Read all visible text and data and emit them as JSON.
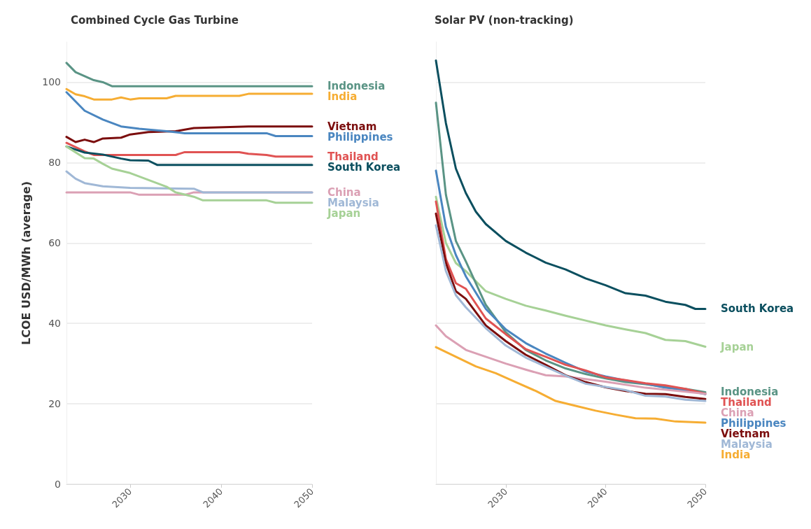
{
  "chart_data": [
    {
      "type": "line",
      "title": "Combined Cycle Gas Turbine",
      "ylabel": "LCOE USD/MWh (average)",
      "xlim": [
        2023,
        2050
      ],
      "xticks": [
        2030,
        2040,
        2050
      ],
      "ylim": [
        0,
        110
      ],
      "yticks": [
        0,
        20,
        40,
        60,
        80,
        100
      ],
      "grid": "y",
      "legend": false,
      "marker": "none",
      "line_style": "solid",
      "series": [
        {
          "name": "Indonesia",
          "color": "#5a9485",
          "x": [
            2023,
            2024,
            2025,
            2026,
            2027,
            2028,
            2050
          ],
          "values": [
            104.8,
            102.5,
            101.5,
            100.5,
            100,
            99,
            99
          ]
        },
        {
          "name": "India",
          "color": "#f6ad33",
          "x": [
            2023,
            2024,
            2025,
            2026,
            2028,
            2029,
            2030,
            2031,
            2034,
            2035,
            2042,
            2043,
            2050
          ],
          "values": [
            98.3,
            97,
            96.5,
            95.7,
            95.7,
            96.2,
            95.7,
            96,
            96,
            96.6,
            96.6,
            97.1,
            97.1
          ]
        },
        {
          "name": "Vietnam",
          "color": "#7b0d0d",
          "x": [
            2023,
            2024,
            2025,
            2026,
            2027,
            2029,
            2030,
            2032,
            2035,
            2037,
            2043,
            2050
          ],
          "values": [
            86.4,
            85.1,
            85.7,
            85.1,
            86,
            86.2,
            87,
            87.6,
            87.8,
            88.6,
            89,
            89
          ]
        },
        {
          "name": "Philippines",
          "color": "#4a86c0",
          "x": [
            2023,
            2025,
            2027,
            2029,
            2031,
            2034,
            2036,
            2045,
            2046,
            2050
          ],
          "values": [
            97.5,
            92.9,
            90.7,
            89,
            88.4,
            87.8,
            87.3,
            87.3,
            86.6,
            86.6
          ]
        },
        {
          "name": "Thailand",
          "color": "#e05353",
          "x": [
            2023,
            2025,
            2026,
            2035,
            2036,
            2042,
            2043,
            2045,
            2046,
            2050
          ],
          "values": [
            84.9,
            82.8,
            81.9,
            81.9,
            82.6,
            82.6,
            82.2,
            81.9,
            81.5,
            81.5
          ]
        },
        {
          "name": "South Korea",
          "color": "#0b4f5f",
          "x": [
            2023,
            2025,
            2027,
            2029,
            2030,
            2032,
            2033,
            2050
          ],
          "values": [
            84,
            82.5,
            82,
            81,
            80.6,
            80.5,
            79.4,
            79.4
          ]
        },
        {
          "name": "China",
          "color": "#dba0b4",
          "x": [
            2023,
            2030,
            2031,
            2036,
            2037,
            2050
          ],
          "values": [
            72.6,
            72.6,
            72,
            72,
            72.6,
            72.6
          ]
        },
        {
          "name": "Malaysia",
          "color": "#a0b8d6",
          "x": [
            2023,
            2024,
            2025,
            2027,
            2030,
            2037,
            2038,
            2050
          ],
          "values": [
            77.8,
            76,
            74.9,
            74.1,
            73.7,
            73.5,
            72.6,
            72.6
          ]
        },
        {
          "name": "Japan",
          "color": "#a6d196",
          "x": [
            2023,
            2025,
            2026,
            2027,
            2028,
            2030,
            2032,
            2034,
            2035,
            2037,
            2038,
            2045,
            2046,
            2050
          ],
          "values": [
            84,
            81.1,
            81,
            79.7,
            78.5,
            77.4,
            75.7,
            74,
            72.6,
            71.5,
            70.6,
            70.6,
            70,
            70
          ]
        }
      ]
    },
    {
      "type": "line",
      "title": "Solar PV (non-tracking)",
      "xlim": [
        2023,
        2050
      ],
      "xticks": [
        2030,
        2040,
        2050
      ],
      "ylim": [
        0,
        110
      ],
      "yticks": [
        0,
        20,
        40,
        60,
        80,
        100
      ],
      "grid": "y",
      "legend": false,
      "marker": "none",
      "line_style": "solid",
      "tick_labels": "x",
      "series": [
        {
          "name": "South Korea",
          "color": "#0b4f5f",
          "x": [
            2023,
            2024,
            2025,
            2026,
            2027,
            2028,
            2030,
            2032,
            2034,
            2036,
            2038,
            2040,
            2042,
            2044,
            2046,
            2048,
            2049,
            2050
          ],
          "values": [
            105.4,
            89.8,
            78.5,
            72.4,
            67.8,
            64.7,
            60.5,
            57.6,
            55.1,
            53.4,
            51.2,
            49.5,
            47.5,
            46.9,
            45.4,
            44.6,
            43.6,
            43.6
          ]
        },
        {
          "name": "Japan",
          "color": "#a6d196",
          "x": [
            2023,
            2024,
            2025,
            2026,
            2028,
            2030,
            2032,
            2034,
            2036,
            2038,
            2040,
            2042,
            2044,
            2046,
            2048,
            2050
          ],
          "values": [
            71.5,
            60,
            55,
            53,
            48,
            46.1,
            44.4,
            43.2,
            41.9,
            40.7,
            39.5,
            38.5,
            37.6,
            35.9,
            35.6,
            34.2
          ]
        },
        {
          "name": "Indonesia",
          "color": "#5a9485",
          "x": [
            2023,
            2024,
            2025,
            2026,
            2028,
            2030,
            2032,
            2034,
            2036,
            2038,
            2040,
            2042,
            2044,
            2046,
            2048,
            2050
          ],
          "values": [
            94.9,
            72,
            60.5,
            55.4,
            44.6,
            37.8,
            33.4,
            30.8,
            28.8,
            27.4,
            26.3,
            25.4,
            24.9,
            24.2,
            23.7,
            22.9
          ]
        },
        {
          "name": "Philippines",
          "color": "#4a86c0",
          "x": [
            2023,
            2024,
            2025,
            2026,
            2028,
            2030,
            2032,
            2034,
            2036,
            2038,
            2040,
            2042,
            2044,
            2046,
            2048,
            2050
          ],
          "values": [
            78,
            64,
            57,
            51.7,
            43.6,
            38.5,
            35.1,
            32.5,
            30.2,
            28,
            26.8,
            25.8,
            25,
            24,
            23.4,
            22.4
          ]
        },
        {
          "name": "Thailand",
          "color": "#e05353",
          "x": [
            2023,
            2024,
            2025,
            2026,
            2028,
            2030,
            2032,
            2034,
            2036,
            2038,
            2040,
            2042,
            2044,
            2046,
            2048,
            2050
          ],
          "values": [
            70.3,
            56,
            50,
            48.6,
            41.2,
            37.3,
            33.6,
            31.7,
            29.7,
            28.3,
            26.6,
            25.9,
            25.1,
            24.6,
            23.7,
            22.5
          ]
        },
        {
          "name": "China",
          "color": "#dba0b4",
          "x": [
            2023,
            2024,
            2026,
            2028,
            2030,
            2032,
            2034,
            2036,
            2040,
            2044,
            2048,
            2050
          ],
          "values": [
            39.5,
            36.8,
            33.4,
            31.7,
            30,
            28.5,
            27.1,
            26.8,
            25.5,
            24,
            23,
            22.5
          ]
        },
        {
          "name": "Vietnam",
          "color": "#7b0d0d",
          "x": [
            2023,
            2024,
            2025,
            2026,
            2028,
            2030,
            2032,
            2034,
            2036,
            2038,
            2040,
            2042,
            2044,
            2046,
            2048,
            2050
          ],
          "values": [
            67.3,
            55,
            48,
            46.1,
            39.5,
            35.6,
            32.2,
            29.7,
            27.1,
            25.4,
            24.1,
            23.2,
            22.5,
            22.4,
            21.7,
            21.2
          ]
        },
        {
          "name": "Malaysia",
          "color": "#a0b8d6",
          "x": [
            2023,
            2024,
            2025,
            2026,
            2028,
            2030,
            2032,
            2034,
            2036,
            2038,
            2040,
            2042,
            2044,
            2046,
            2048,
            2050
          ],
          "values": [
            64.4,
            53,
            47,
            44,
            38.8,
            34.5,
            31.5,
            29.2,
            27,
            25,
            24.2,
            23.4,
            22,
            21.8,
            21,
            20.7
          ]
        },
        {
          "name": "India",
          "color": "#f6ad33",
          "x": [
            2023,
            2025,
            2027,
            2029,
            2031,
            2033,
            2035,
            2037,
            2039,
            2041,
            2043,
            2045,
            2047,
            2050
          ],
          "values": [
            34.1,
            31.7,
            29.3,
            27.6,
            25.4,
            23.2,
            20.7,
            19.5,
            18.3,
            17.3,
            16.4,
            16.3,
            15.6,
            15.3
          ]
        }
      ]
    }
  ]
}
